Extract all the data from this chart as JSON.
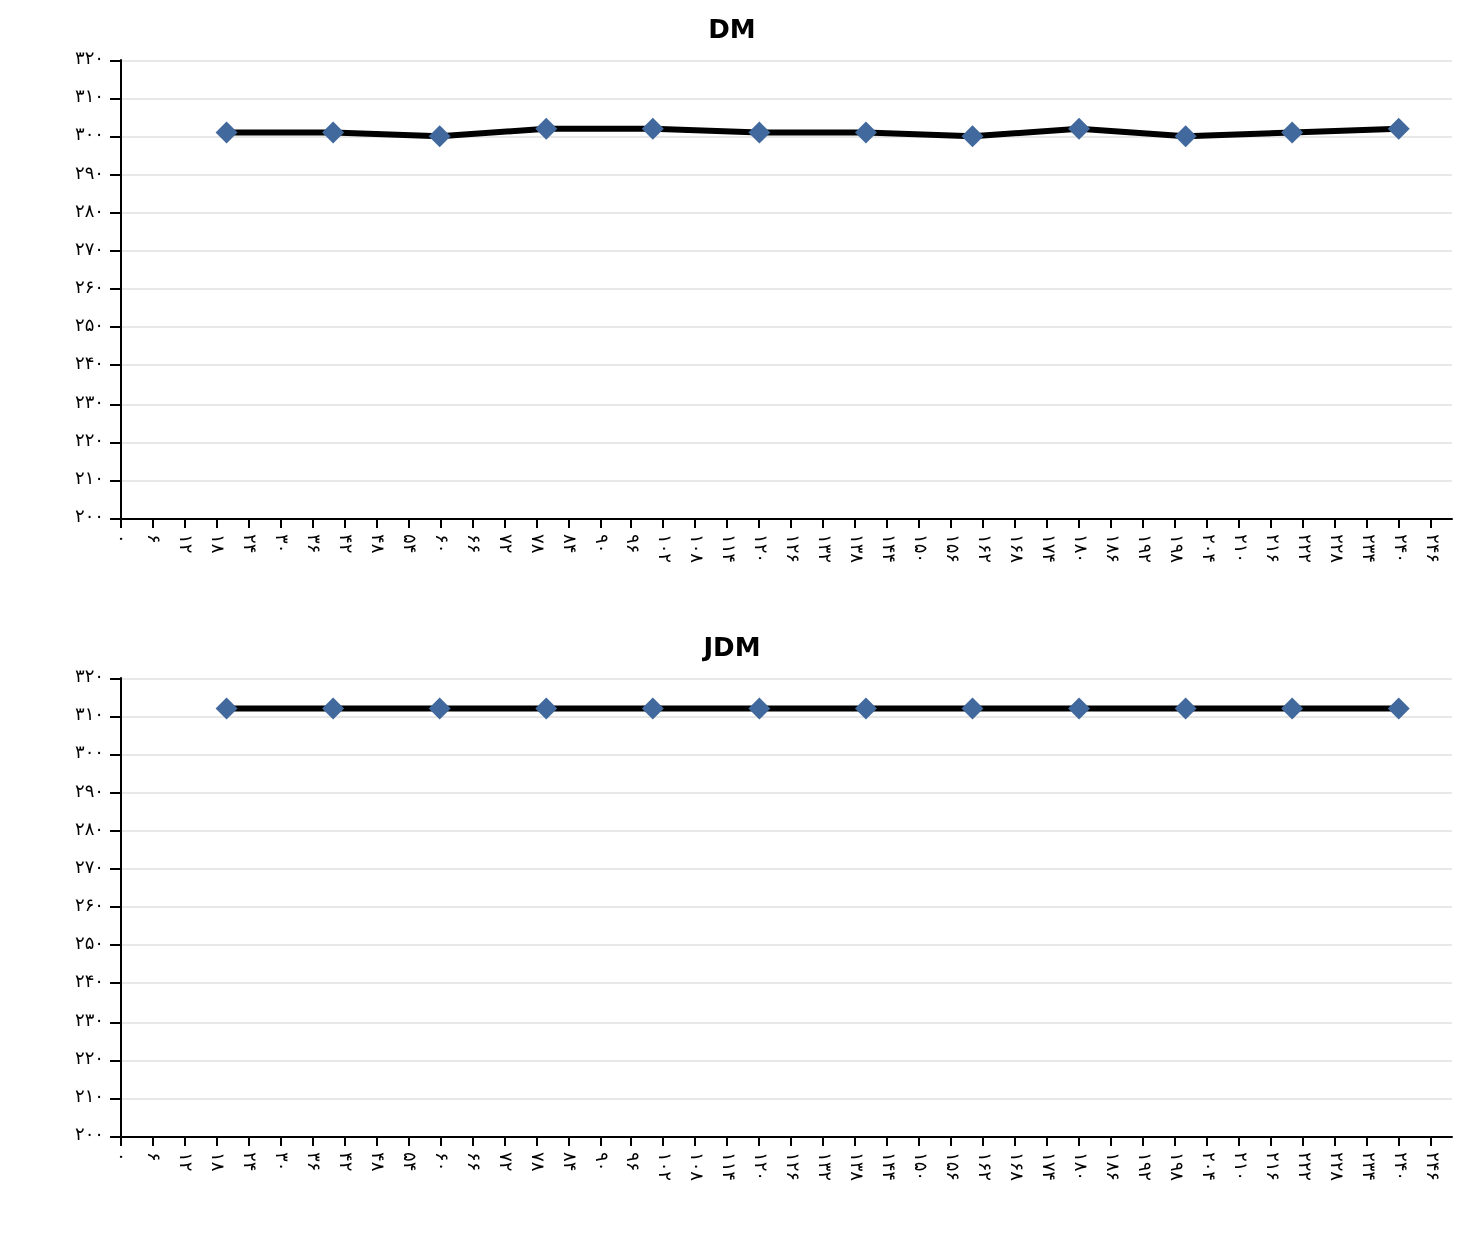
{
  "chart_data": [
    {
      "type": "line",
      "title": "DM",
      "marker": "diamond",
      "grid": "y",
      "x": [
        20,
        40,
        60,
        80,
        100,
        120,
        140,
        160,
        180,
        200,
        220,
        240
      ],
      "series": [
        {
          "color": "#41699d",
          "values": [
            301,
            301,
            300,
            302,
            302,
            301,
            301,
            300,
            302,
            300,
            301,
            302
          ]
        }
      ],
      "xlim": [
        0,
        250
      ],
      "xticks": [
        {
          "value": 0,
          "label": "۰"
        },
        {
          "value": 6,
          "label": "۶"
        },
        {
          "value": 12,
          "label": "۱۲"
        },
        {
          "value": 18,
          "label": "۱۸"
        },
        {
          "value": 24,
          "label": "۲۴"
        },
        {
          "value": 30,
          "label": "۳۰"
        },
        {
          "value": 36,
          "label": "۳۶"
        },
        {
          "value": 42,
          "label": "۴۲"
        },
        {
          "value": 48,
          "label": "۴۸"
        },
        {
          "value": 54,
          "label": "۵۴"
        },
        {
          "value": 60,
          "label": "۶۰"
        },
        {
          "value": 66,
          "label": "۶۶"
        },
        {
          "value": 72,
          "label": "۷۲"
        },
        {
          "value": 78,
          "label": "۷۸"
        },
        {
          "value": 84,
          "label": "۸۴"
        },
        {
          "value": 90,
          "label": "۹۰"
        },
        {
          "value": 96,
          "label": "۹۶"
        },
        {
          "value": 102,
          "label": "۱۰۲"
        },
        {
          "value": 108,
          "label": "۱۰۸"
        },
        {
          "value": 114,
          "label": "۱۱۴"
        },
        {
          "value": 120,
          "label": "۱۲۰"
        },
        {
          "value": 126,
          "label": "۱۲۶"
        },
        {
          "value": 132,
          "label": "۱۳۲"
        },
        {
          "value": 138,
          "label": "۱۳۸"
        },
        {
          "value": 144,
          "label": "۱۴۴"
        },
        {
          "value": 150,
          "label": "۱۵۰"
        },
        {
          "value": 156,
          "label": "۱۵۶"
        },
        {
          "value": 162,
          "label": "۱۶۲"
        },
        {
          "value": 168,
          "label": "۱۶۸"
        },
        {
          "value": 174,
          "label": "۱۷۴"
        },
        {
          "value": 180,
          "label": "۱۸۰"
        },
        {
          "value": 186,
          "label": "۱۸۶"
        },
        {
          "value": 192,
          "label": "۱۹۲"
        },
        {
          "value": 198,
          "label": "۱۹۸"
        },
        {
          "value": 204,
          "label": "۲۰۴"
        },
        {
          "value": 210,
          "label": "۲۱۰"
        },
        {
          "value": 216,
          "label": "۲۱۶"
        },
        {
          "value": 222,
          "label": "۲۲۲"
        },
        {
          "value": 228,
          "label": "۲۲۸"
        },
        {
          "value": 234,
          "label": "۲۳۴"
        },
        {
          "value": 240,
          "label": "۲۴۰"
        },
        {
          "value": 246,
          "label": "۲۴۶"
        }
      ],
      "ylim": [
        200,
        320
      ],
      "yticks": [
        {
          "value": 200,
          "label": "۲۰۰"
        },
        {
          "value": 210,
          "label": "۲۱۰"
        },
        {
          "value": 220,
          "label": "۲۲۰"
        },
        {
          "value": 230,
          "label": "۲۳۰"
        },
        {
          "value": 240,
          "label": "۲۴۰"
        },
        {
          "value": 250,
          "label": "۲۵۰"
        },
        {
          "value": 260,
          "label": "۲۶۰"
        },
        {
          "value": 270,
          "label": "۲۷۰"
        },
        {
          "value": 280,
          "label": "۲۸۰"
        },
        {
          "value": 290,
          "label": "۲۹۰"
        },
        {
          "value": 300,
          "label": "۳۰۰"
        },
        {
          "value": 310,
          "label": "۳۱۰"
        },
        {
          "value": 320,
          "label": "۳۲۰"
        }
      ]
    },
    {
      "type": "line",
      "title": "JDM",
      "marker": "diamond",
      "grid": "y",
      "x": [
        20,
        40,
        60,
        80,
        100,
        120,
        140,
        160,
        180,
        200,
        220,
        240
      ],
      "series": [
        {
          "color": "#41699d",
          "values": [
            312,
            312,
            312,
            312,
            312,
            312,
            312,
            312,
            312,
            312,
            312,
            312
          ]
        }
      ],
      "xlim": [
        0,
        250
      ],
      "xticks": [
        {
          "value": 0,
          "label": "۰"
        },
        {
          "value": 6,
          "label": "۶"
        },
        {
          "value": 12,
          "label": "۱۲"
        },
        {
          "value": 18,
          "label": "۱۸"
        },
        {
          "value": 24,
          "label": "۲۴"
        },
        {
          "value": 30,
          "label": "۳۰"
        },
        {
          "value": 36,
          "label": "۳۶"
        },
        {
          "value": 42,
          "label": "۴۲"
        },
        {
          "value": 48,
          "label": "۴۸"
        },
        {
          "value": 54,
          "label": "۵۴"
        },
        {
          "value": 60,
          "label": "۶۰"
        },
        {
          "value": 66,
          "label": "۶۶"
        },
        {
          "value": 72,
          "label": "۷۲"
        },
        {
          "value": 78,
          "label": "۷۸"
        },
        {
          "value": 84,
          "label": "۸۴"
        },
        {
          "value": 90,
          "label": "۹۰"
        },
        {
          "value": 96,
          "label": "۹۶"
        },
        {
          "value": 102,
          "label": "۱۰۲"
        },
        {
          "value": 108,
          "label": "۱۰۸"
        },
        {
          "value": 114,
          "label": "۱۱۴"
        },
        {
          "value": 120,
          "label": "۱۲۰"
        },
        {
          "value": 126,
          "label": "۱۲۶"
        },
        {
          "value": 132,
          "label": "۱۳۲"
        },
        {
          "value": 138,
          "label": "۱۳۸"
        },
        {
          "value": 144,
          "label": "۱۴۴"
        },
        {
          "value": 150,
          "label": "۱۵۰"
        },
        {
          "value": 156,
          "label": "۱۵۶"
        },
        {
          "value": 162,
          "label": "۱۶۲"
        },
        {
          "value": 168,
          "label": "۱۶۸"
        },
        {
          "value": 174,
          "label": "۱۷۴"
        },
        {
          "value": 180,
          "label": "۱۸۰"
        },
        {
          "value": 186,
          "label": "۱۸۶"
        },
        {
          "value": 192,
          "label": "۱۹۲"
        },
        {
          "value": 198,
          "label": "۱۹۸"
        },
        {
          "value": 204,
          "label": "۲۰۴"
        },
        {
          "value": 210,
          "label": "۲۱۰"
        },
        {
          "value": 216,
          "label": "۲۱۶"
        },
        {
          "value": 222,
          "label": "۲۲۲"
        },
        {
          "value": 228,
          "label": "۲۲۸"
        },
        {
          "value": 234,
          "label": "۲۳۴"
        },
        {
          "value": 240,
          "label": "۲۴۰"
        },
        {
          "value": 246,
          "label": "۲۴۶"
        }
      ],
      "ylim": [
        200,
        320
      ],
      "yticks": [
        {
          "value": 200,
          "label": "۲۰۰"
        },
        {
          "value": 210,
          "label": "۲۱۰"
        },
        {
          "value": 220,
          "label": "۲۲۰"
        },
        {
          "value": 230,
          "label": "۲۳۰"
        },
        {
          "value": 240,
          "label": "۲۴۰"
        },
        {
          "value": 250,
          "label": "۲۵۰"
        },
        {
          "value": 260,
          "label": "۲۶۰"
        },
        {
          "value": 270,
          "label": "۲۷۰"
        },
        {
          "value": 280,
          "label": "۲۸۰"
        },
        {
          "value": 290,
          "label": "۲۹۰"
        },
        {
          "value": 300,
          "label": "۳۰۰"
        },
        {
          "value": 310,
          "label": "۳۱۰"
        },
        {
          "value": 320,
          "label": "۳۲۰"
        }
      ]
    }
  ]
}
